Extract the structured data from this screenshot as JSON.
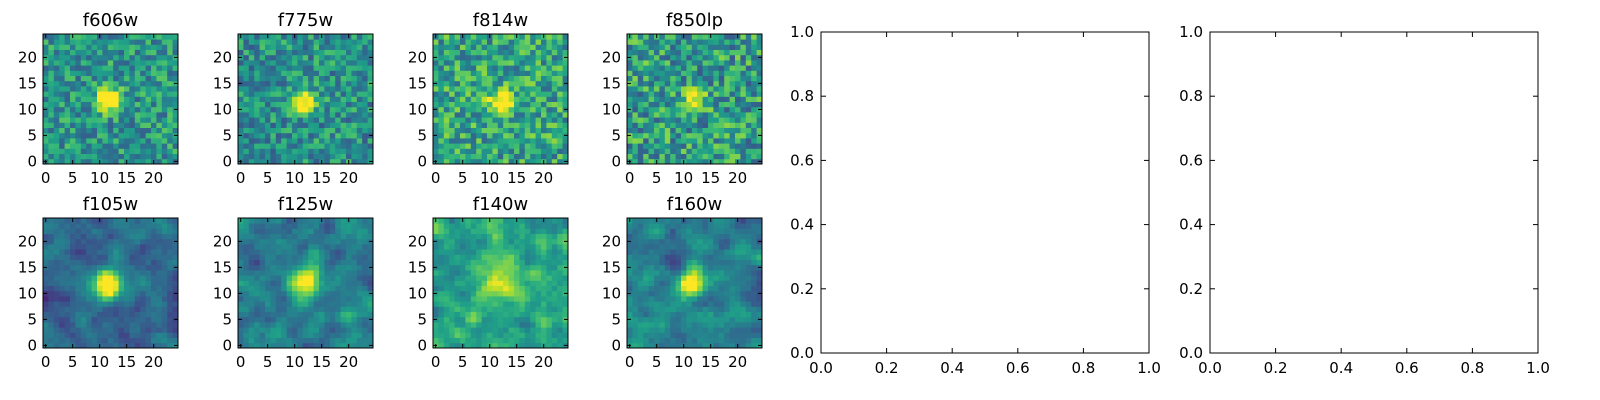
{
  "chart_data": [
    {
      "type": "heatmap",
      "title": "f606w",
      "xticks": [
        "0",
        "5",
        "10",
        "15",
        "20"
      ],
      "yticks": [
        "0",
        "5",
        "10",
        "15",
        "20"
      ],
      "xlim": [
        0,
        24
      ],
      "ylim": [
        0,
        24
      ],
      "grid_size": 25,
      "source_center": [
        11.5,
        12
      ],
      "source_peak": 0.85,
      "source_sigma": 1.5,
      "noise_level": 0.22,
      "background": 0.52,
      "colormap": "viridis"
    },
    {
      "type": "heatmap",
      "title": "f775w",
      "xticks": [
        "0",
        "5",
        "10",
        "15",
        "20"
      ],
      "yticks": [
        "0",
        "5",
        "10",
        "15",
        "20"
      ],
      "xlim": [
        0,
        24
      ],
      "ylim": [
        0,
        24
      ],
      "grid_size": 25,
      "source_center": [
        12,
        11.5
      ],
      "source_peak": 0.7,
      "source_sigma": 1.5,
      "noise_level": 0.22,
      "background": 0.5,
      "colormap": "viridis"
    },
    {
      "type": "heatmap",
      "title": "f814w",
      "xticks": [
        "0",
        "5",
        "10",
        "15",
        "20"
      ],
      "yticks": [
        "0",
        "5",
        "10",
        "15",
        "20"
      ],
      "xlim": [
        0,
        24
      ],
      "ylim": [
        0,
        24
      ],
      "grid_size": 25,
      "source_center": [
        12,
        11.5
      ],
      "source_peak": 0.6,
      "source_sigma": 1.6,
      "noise_level": 0.25,
      "background": 0.58,
      "colormap": "viridis"
    },
    {
      "type": "heatmap",
      "title": "f850lp",
      "xticks": [
        "0",
        "5",
        "10",
        "15",
        "20"
      ],
      "yticks": [
        "0",
        "5",
        "10",
        "15",
        "20"
      ],
      "xlim": [
        0,
        24
      ],
      "ylim": [
        0,
        24
      ],
      "grid_size": 25,
      "source_center": [
        12,
        11.5
      ],
      "source_peak": 0.5,
      "source_sigma": 1.5,
      "noise_level": 0.27,
      "background": 0.55,
      "colormap": "viridis"
    },
    {
      "type": "heatmap",
      "title": "f105w",
      "xticks": [
        "0",
        "5",
        "10",
        "15",
        "20"
      ],
      "yticks": [
        "0",
        "5",
        "10",
        "15",
        "20"
      ],
      "xlim": [
        0,
        24
      ],
      "ylim": [
        0,
        24
      ],
      "grid_size": 25,
      "source_center": [
        11.5,
        12
      ],
      "source_peak": 0.85,
      "source_sigma": 2.0,
      "noise_level": 0.12,
      "background": 0.35,
      "colormap": "viridis"
    },
    {
      "type": "heatmap",
      "title": "f125w",
      "xticks": [
        "0",
        "5",
        "10",
        "15",
        "20"
      ],
      "yticks": [
        "0",
        "5",
        "10",
        "15",
        "20"
      ],
      "xlim": [
        0,
        24
      ],
      "ylim": [
        0,
        24
      ],
      "grid_size": 25,
      "source_center": [
        12,
        12
      ],
      "source_peak": 0.75,
      "source_sigma": 2.0,
      "noise_level": 0.13,
      "background": 0.42,
      "colormap": "viridis"
    },
    {
      "type": "heatmap",
      "title": "f140w",
      "xticks": [
        "0",
        "5",
        "10",
        "15",
        "20"
      ],
      "yticks": [
        "0",
        "5",
        "10",
        "15",
        "20"
      ],
      "xlim": [
        0,
        24
      ],
      "ylim": [
        0,
        24
      ],
      "grid_size": 25,
      "source_center": [
        12,
        12
      ],
      "source_peak": 0.45,
      "source_sigma": 2.0,
      "noise_level": 0.15,
      "background": 0.58,
      "colormap": "viridis"
    },
    {
      "type": "heatmap",
      "title": "f160w",
      "xticks": [
        "0",
        "5",
        "10",
        "15",
        "20"
      ],
      "yticks": [
        "0",
        "5",
        "10",
        "15",
        "20"
      ],
      "xlim": [
        0,
        24
      ],
      "ylim": [
        0,
        24
      ],
      "grid_size": 25,
      "source_center": [
        12,
        12
      ],
      "source_peak": 0.75,
      "source_sigma": 2.0,
      "noise_level": 0.13,
      "background": 0.42,
      "colormap": "viridis"
    },
    {
      "type": "empty",
      "title": "",
      "xlim": [
        0,
        1
      ],
      "ylim": [
        0,
        1
      ],
      "xticks": [
        "0.0",
        "0.2",
        "0.4",
        "0.6",
        "0.8",
        "1.0"
      ],
      "yticks": [
        "0.0",
        "0.2",
        "0.4",
        "0.6",
        "0.8",
        "1.0"
      ]
    },
    {
      "type": "empty",
      "title": "",
      "xlim": [
        0,
        1
      ],
      "ylim": [
        0,
        1
      ],
      "xticks": [
        "0.0",
        "0.2",
        "0.4",
        "0.6",
        "0.8",
        "1.0"
      ],
      "yticks": [
        "0.0",
        "0.2",
        "0.4",
        "0.6",
        "0.8",
        "1.0"
      ]
    }
  ]
}
